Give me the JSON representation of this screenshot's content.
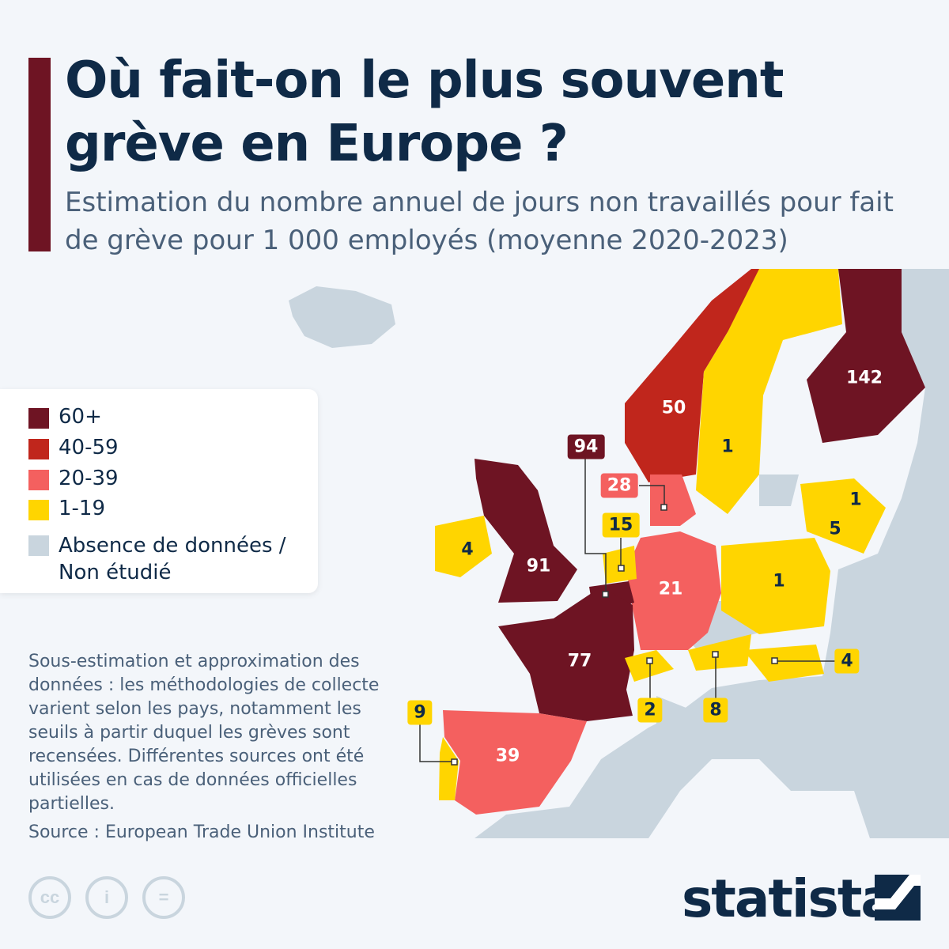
{
  "header": {
    "title": "Où fait-on le plus souvent grève en Europe ?",
    "subtitle": "Estimation du nombre annuel de jours non travaillés pour fait de grève pour 1 000 employés (moyenne 2020-2023)"
  },
  "colors": {
    "c60": "#6e1423",
    "c40": "#c0261c",
    "c20": "#f4605f",
    "c1": "#ffd500",
    "none": "#c9d5de"
  },
  "legend": [
    {
      "label": "60+",
      "color": "#6e1423"
    },
    {
      "label": "40-59",
      "color": "#c0261c"
    },
    {
      "label": "20-39",
      "color": "#f4605f"
    },
    {
      "label": "1-19",
      "color": "#ffd500"
    },
    {
      "label": "Absence de données / Non étudié",
      "color": "#c9d5de"
    }
  ],
  "countries": {
    "finland": "142",
    "belgium": "94",
    "uk": "91",
    "france": "77",
    "norway": "50",
    "spain": "39",
    "denmark": "28",
    "germany": "21",
    "netherlands": "15",
    "portugal": "9",
    "austria": "8",
    "lithuania": "5",
    "ireland": "4",
    "hungary": "4",
    "switzerland": "2",
    "sweden": "1",
    "latvia": "1",
    "poland": "1"
  },
  "note": "Sous-estimation et approximation des données : les méthodologies de collecte varient selon les pays, notamment les seuils à partir duquel les grèves sont recensées. Différentes sources ont été utilisées en cas de données officielles partielles.",
  "source": "Source : European Trade Union Institute",
  "footer": {
    "cc": "cc",
    "by": "i",
    "nd": "=",
    "brand": "statista"
  }
}
